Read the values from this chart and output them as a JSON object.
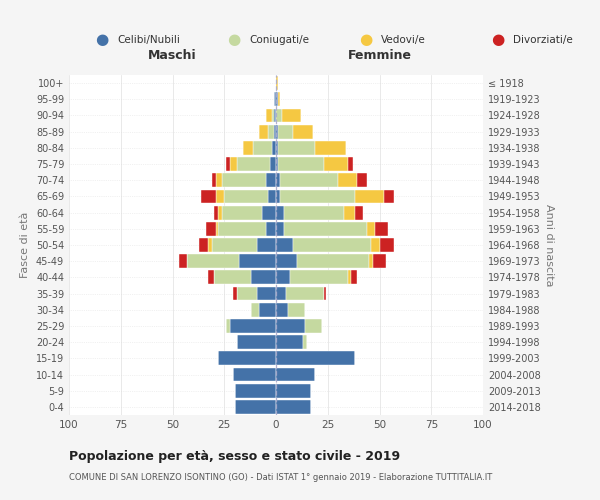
{
  "age_groups": [
    "0-4",
    "5-9",
    "10-14",
    "15-19",
    "20-24",
    "25-29",
    "30-34",
    "35-39",
    "40-44",
    "45-49",
    "50-54",
    "55-59",
    "60-64",
    "65-69",
    "70-74",
    "75-79",
    "80-84",
    "85-89",
    "90-94",
    "95-99",
    "100+"
  ],
  "birth_years": [
    "2014-2018",
    "2009-2013",
    "2004-2008",
    "1999-2003",
    "1994-1998",
    "1989-1993",
    "1984-1988",
    "1979-1983",
    "1974-1978",
    "1969-1973",
    "1964-1968",
    "1959-1963",
    "1954-1958",
    "1949-1953",
    "1944-1948",
    "1939-1943",
    "1934-1938",
    "1929-1933",
    "1924-1928",
    "1919-1923",
    "≤ 1918"
  ],
  "colors": {
    "celibi": "#4472a8",
    "coniugati": "#c5d9a0",
    "vedovi": "#f5c842",
    "divorziati": "#cc2222"
  },
  "males": {
    "celibi": [
      20,
      20,
      21,
      28,
      19,
      22,
      8,
      9,
      12,
      18,
      9,
      5,
      7,
      4,
      5,
      3,
      2,
      1,
      1,
      1,
      0
    ],
    "coniugati": [
      0,
      0,
      0,
      0,
      0,
      2,
      4,
      10,
      18,
      25,
      22,
      23,
      19,
      21,
      21,
      16,
      9,
      3,
      1,
      0,
      0
    ],
    "vedovi": [
      0,
      0,
      0,
      0,
      0,
      0,
      0,
      0,
      0,
      0,
      2,
      1,
      2,
      4,
      3,
      3,
      5,
      4,
      3,
      0,
      0
    ],
    "divorziati": [
      0,
      0,
      0,
      0,
      0,
      0,
      0,
      2,
      3,
      4,
      4,
      5,
      2,
      7,
      2,
      2,
      0,
      0,
      0,
      0,
      0
    ]
  },
  "females": {
    "celibi": [
      17,
      17,
      19,
      38,
      13,
      14,
      6,
      5,
      7,
      10,
      8,
      4,
      4,
      2,
      2,
      1,
      1,
      1,
      0,
      1,
      0
    ],
    "coniugati": [
      0,
      0,
      0,
      0,
      2,
      8,
      8,
      18,
      28,
      35,
      38,
      40,
      29,
      36,
      28,
      22,
      18,
      7,
      3,
      0,
      0
    ],
    "vedovi": [
      0,
      0,
      0,
      0,
      0,
      0,
      0,
      0,
      1,
      2,
      4,
      4,
      5,
      14,
      9,
      12,
      15,
      10,
      9,
      1,
      1
    ],
    "divorziati": [
      0,
      0,
      0,
      0,
      0,
      0,
      0,
      1,
      3,
      6,
      7,
      6,
      4,
      5,
      5,
      2,
      0,
      0,
      0,
      0,
      0
    ]
  },
  "title": "Popolazione per età, sesso e stato civile - 2019",
  "subtitle": "COMUNE DI SAN LORENZO ISONTINO (GO) - Dati ISTAT 1° gennaio 2019 - Elaborazione TUTTITALIA.IT",
  "xlabel_left": "Maschi",
  "xlabel_right": "Femmine",
  "ylabel_left": "Fasce di età",
  "ylabel_right": "Anni di nascita",
  "xlim": 100,
  "legend_labels": [
    "Celibi/Nubili",
    "Coniugati/e",
    "Vedovi/e",
    "Divorziati/e"
  ],
  "bg_color": "#f5f5f5",
  "plot_bg": "#ffffff"
}
